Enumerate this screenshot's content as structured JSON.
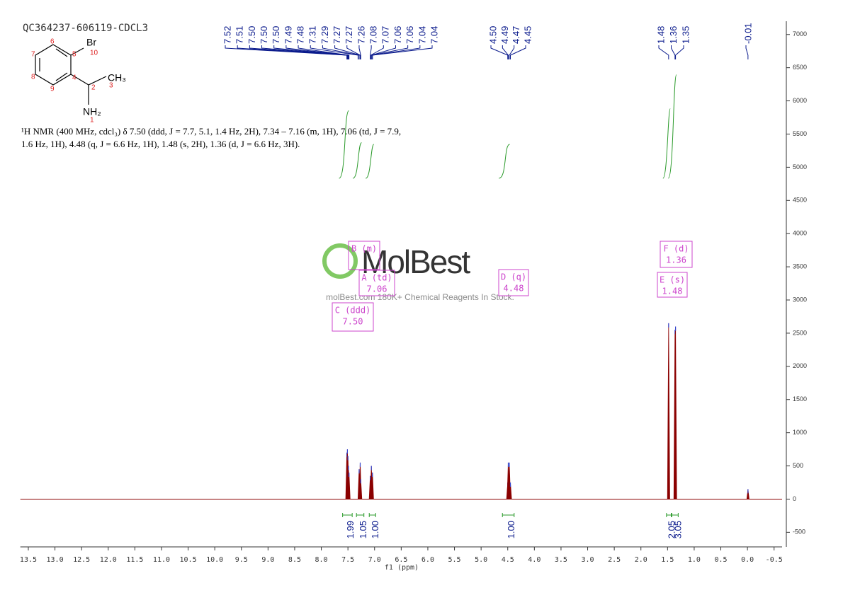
{
  "chart_data": {
    "type": "nmr",
    "sample_title": "QC364237-606119-CDCL3",
    "structure": {
      "atoms": [
        "Br",
        "CH₃",
        "NH₂"
      ],
      "locants": [
        "1",
        "2",
        "3",
        "4",
        "5",
        "6",
        "7",
        "8",
        "9",
        "10"
      ]
    },
    "description": [
      "¹H NMR (400 MHz, cdcl₃) δ 7.50 (ddd, J = 7.7, 5.1, 1.4 Hz, 2H), 7.34 – 7.16 (m, 1H), 7.06 (td, J = 7.9,",
      "1.6 Hz, 1H), 4.48 (q, J = 6.6 Hz, 1H), 1.48 (s, 2H), 1.36 (d, J = 6.6 Hz, 3H)."
    ],
    "watermark": "MolBest",
    "watermark_caption": "molBest.com 180K+ Chemical Reagents In Stock.",
    "xlabel": "f1 (ppm)",
    "xlim": [
      13.65,
      -0.65
    ],
    "ylim": [
      -720,
      7200
    ],
    "xticks": [
      13.5,
      {
        "value": 13,
        "label": "13.0"
      },
      12.5,
      {
        "value": 12,
        "label": "12.0"
      },
      11.5,
      {
        "value": 11,
        "label": "11.0"
      },
      10.5,
      {
        "value": 10,
        "label": "10.0"
      },
      9.5,
      {
        "value": 9,
        "label": "9.0"
      },
      8.5,
      {
        "value": 8,
        "label": "8.0"
      },
      7.5,
      {
        "value": 7,
        "label": "7.0"
      },
      6.5,
      {
        "value": 6,
        "label": "6.0"
      },
      5.5,
      {
        "value": 5,
        "label": "5.0"
      },
      4.5,
      {
        "value": 4,
        "label": "4.0"
      },
      3.5,
      {
        "value": 3,
        "label": "3.0"
      },
      2.5,
      {
        "value": 2,
        "label": "2.0"
      },
      1.5,
      {
        "value": 1,
        "label": "1.0"
      },
      0.5,
      {
        "value": 0,
        "label": "0.0"
      },
      -0.5
    ],
    "yticks": [
      -500,
      0,
      500,
      1000,
      1500,
      2000,
      2500,
      3000,
      3500,
      4000,
      4500,
      5000,
      5500,
      6000,
      6500,
      7000
    ],
    "color": "#8b0000",
    "x": [
      7.52,
      7.51,
      7.5,
      7.49,
      7.48,
      7.29,
      7.27,
      7.26,
      7.08,
      7.06,
      7.04,
      4.5,
      4.49,
      4.47,
      4.45,
      1.48,
      1.36,
      1.35,
      -0.01
    ],
    "values": [
      700,
      750,
      650,
      500,
      400,
      450,
      550,
      300,
      350,
      500,
      400,
      250,
      550,
      550,
      250,
      2650,
      2550,
      2600,
      150
    ],
    "peak_labels": [
      [
        {
          "value": 7.52,
          "label": "7.52"
        },
        {
          "value": 7.51,
          "label": "7.51"
        },
        {
          "value": 7.5,
          "label": "7.50"
        },
        {
          "value": 7.5,
          "label": "7.50"
        },
        {
          "value": 7.5,
          "label": "7.50"
        },
        {
          "value": 7.49,
          "label": "7.49"
        },
        {
          "value": 7.48,
          "label": "7.48"
        },
        {
          "value": 7.31,
          "label": "7.31"
        },
        {
          "value": 7.29,
          "label": "7.29"
        },
        {
          "value": 7.27,
          "label": "7.27"
        },
        {
          "value": 7.27,
          "label": "7.27"
        },
        {
          "value": 7.26,
          "label": "7.26"
        },
        {
          "value": 7.08,
          "label": "7.08"
        },
        {
          "value": 7.07,
          "label": "7.07"
        },
        {
          "value": 7.06,
          "label": "7.06"
        },
        {
          "value": 7.06,
          "label": "7.06"
        },
        {
          "value": 7.04,
          "label": "7.04"
        },
        {
          "value": 7.04,
          "label": "7.04"
        }
      ],
      [
        {
          "value": 4.5,
          "label": "4.50"
        },
        {
          "value": 4.49,
          "label": "4.49"
        },
        {
          "value": 4.47,
          "label": "4.47"
        },
        {
          "value": 4.45,
          "label": "4.45"
        }
      ],
      [
        {
          "value": 1.48,
          "label": "1.48"
        },
        {
          "value": 1.36,
          "label": "1.36"
        },
        {
          "value": 1.35,
          "label": "1.35"
        }
      ],
      [
        -0.01
      ]
    ],
    "integrals": {
      "from": [
        7.6,
        7.34,
        7.1,
        4.6,
        1.52,
        1.42
      ],
      "to": [
        7.42,
        7.2,
        6.98,
        4.38,
        1.43,
        1.3
      ],
      "values": [
        1.99,
        1.05,
        1,
        1,
        2.05,
        3.05
      ],
      "value_labels": [
        "1.99",
        "1.05",
        "1.00",
        "1.00",
        "2.05",
        "3.05"
      ]
    },
    "multiplets": [
      {
        "name": "B (m)"
      },
      {
        "name": "A (td)",
        "shift": "7.06"
      },
      {
        "name": "C (ddd)",
        "shift": "7.50"
      },
      {
        "name": "D (q)",
        "shift": "4.48"
      },
      {
        "name": "E (s)",
        "shift": "1.48"
      },
      {
        "name": "F (d)",
        "shift": "1.36"
      }
    ]
  }
}
